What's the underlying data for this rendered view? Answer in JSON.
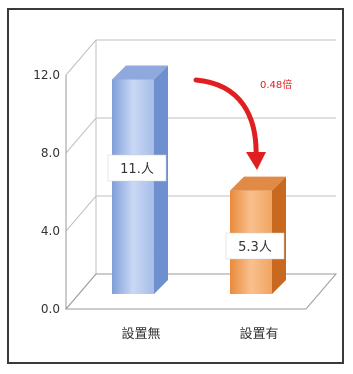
{
  "chart_data": {
    "type": "bar",
    "categories": [
      "設置無",
      "設置有"
    ],
    "values": [
      11,
      5.3
    ],
    "value_labels": [
      "11.人",
      "5.3人"
    ],
    "ylim": [
      0,
      12
    ],
    "yticks": [
      "0.0",
      "4.0",
      "8.0",
      "12.0"
    ],
    "ytick_values": [
      0,
      4,
      8,
      12
    ],
    "grid": true,
    "annotation": "0.48倍",
    "colors": {
      "bar1_front": "#a9c2ec",
      "bar1_side": "#6f90cf",
      "bar1_top": "#8fa9de",
      "bar2_front": "#f5b27a",
      "bar2_side": "#c8691f",
      "bar2_top": "#e08a46",
      "arrow": "#e02020",
      "grid": "#bfbfbf",
      "text": "#333333"
    }
  }
}
